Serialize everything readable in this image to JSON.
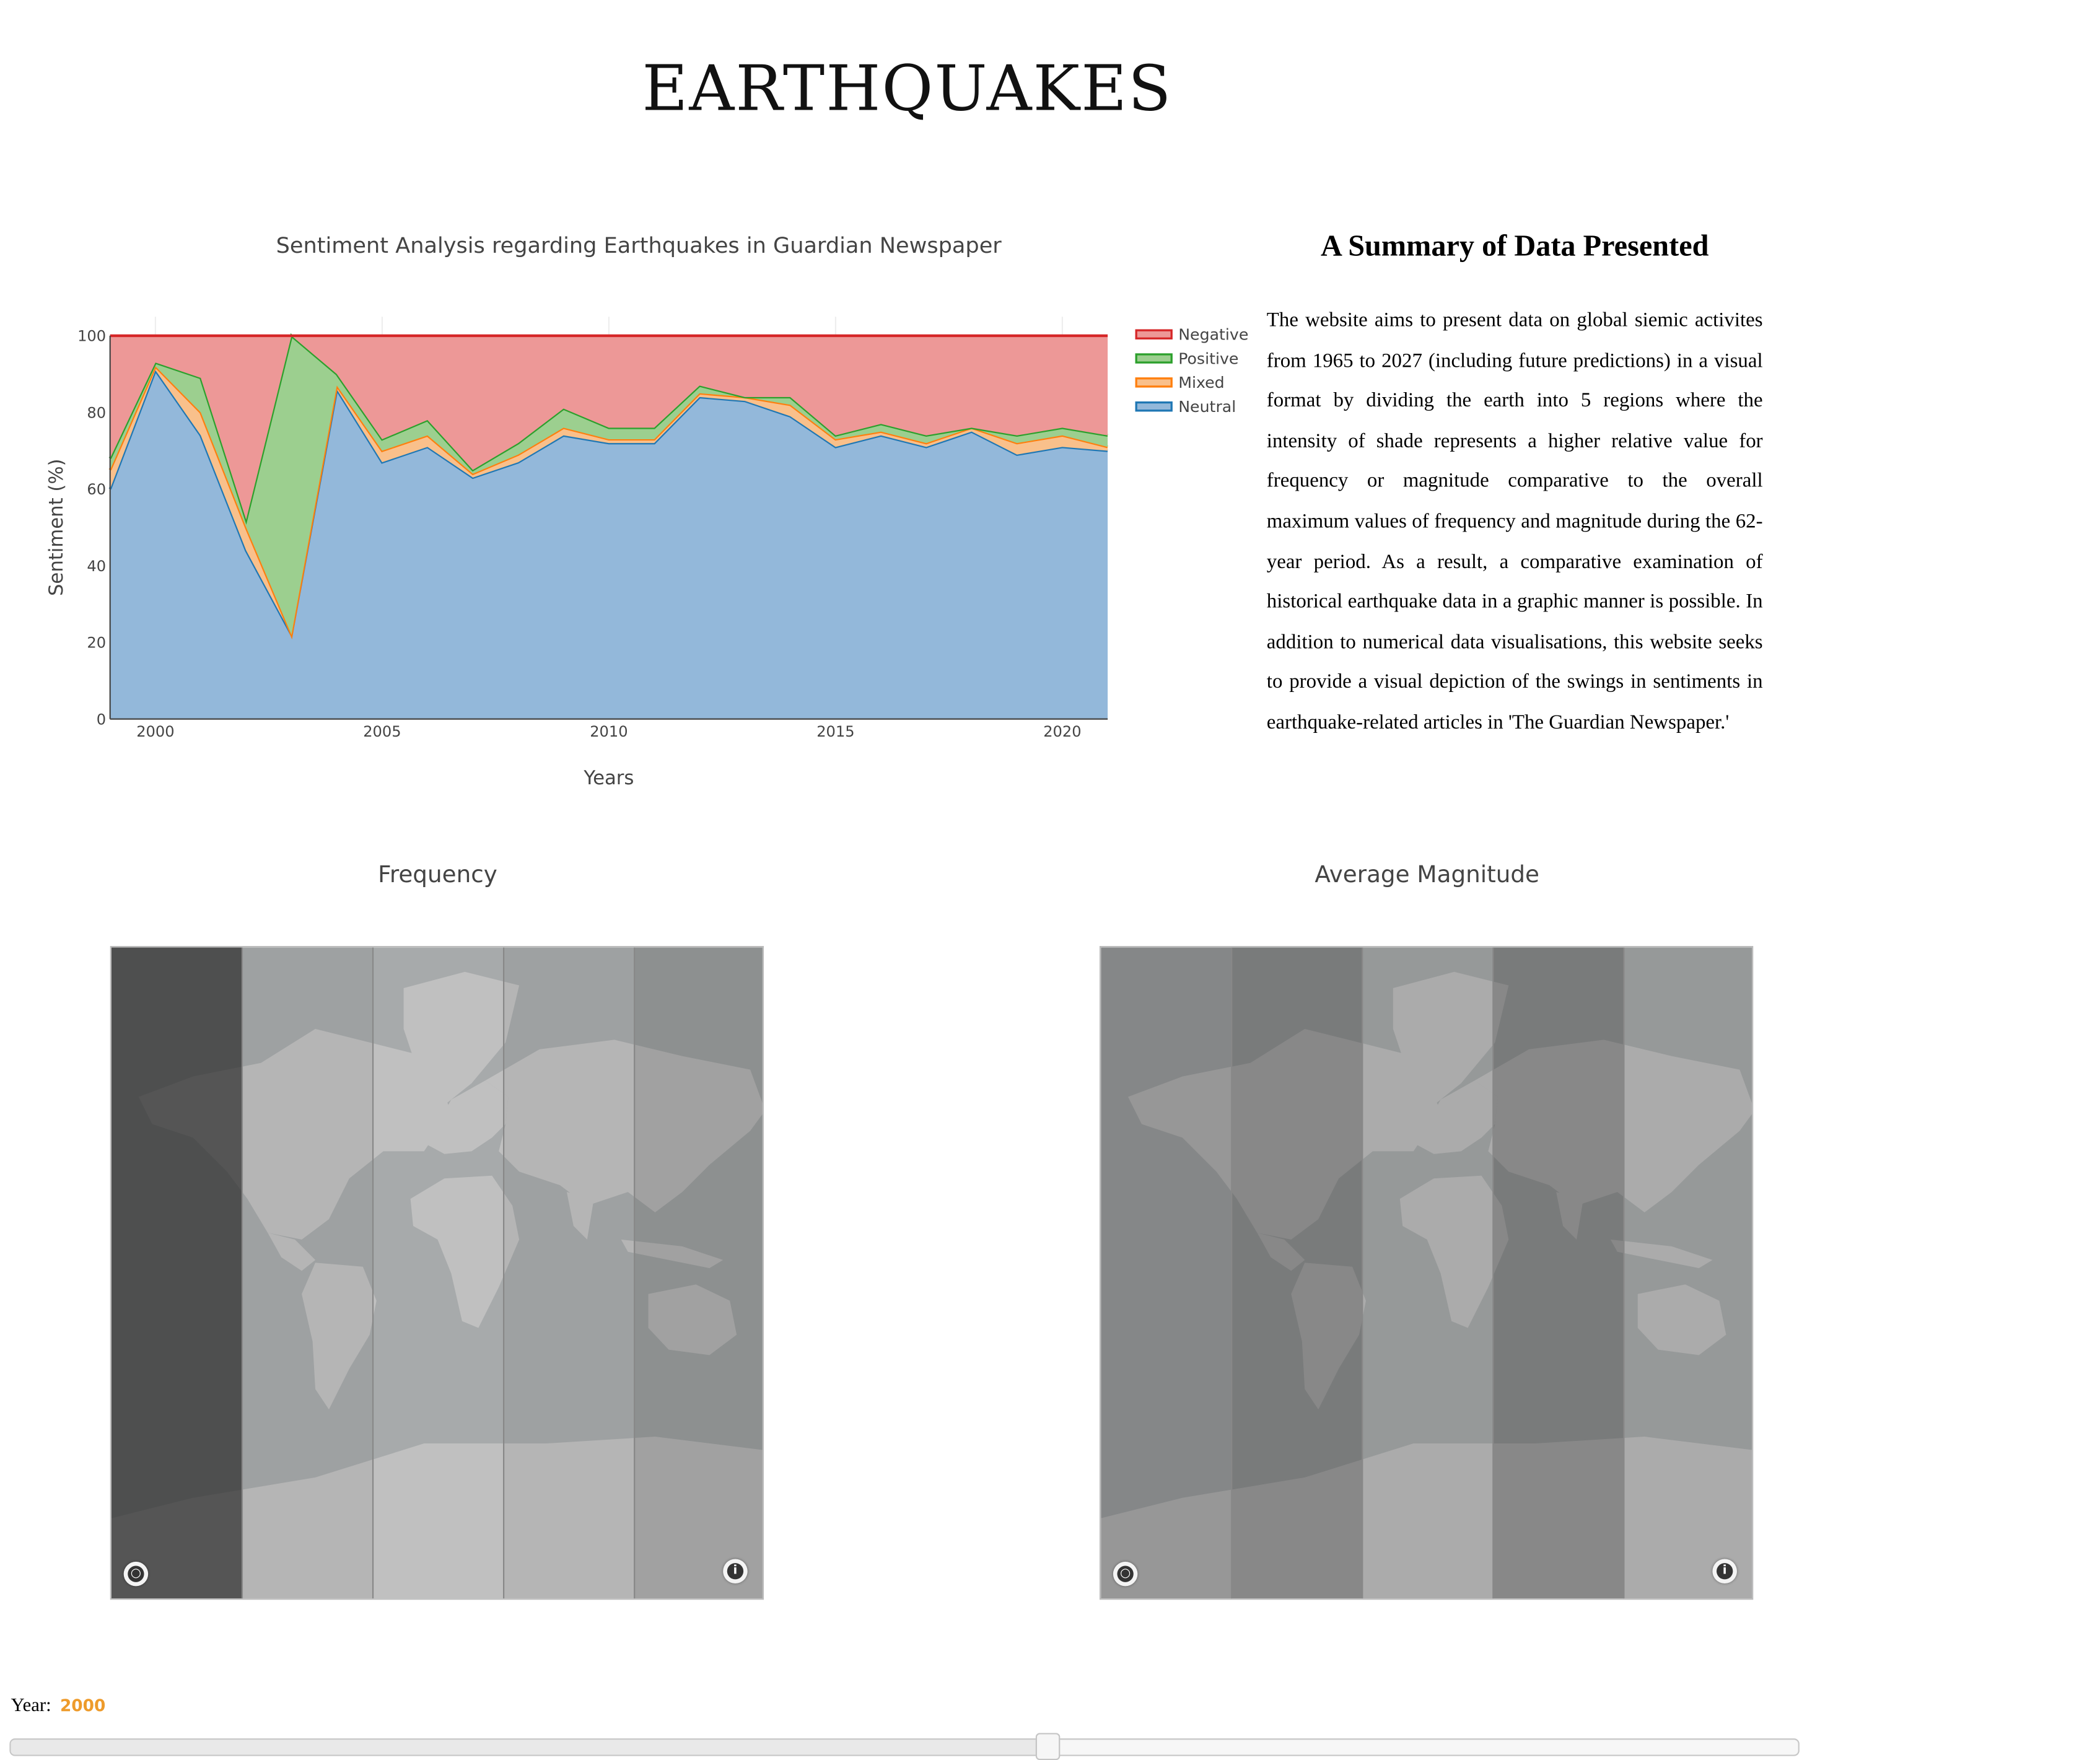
{
  "page": {
    "title": "EARTHQUAKES"
  },
  "summary": {
    "heading": "A Summary of Data Presented",
    "text": "The website aims to present data on global siemic activites from 1965 to 2027 (including future predictions) in a visual format by dividing the earth into 5 regions where the intensity of shade represents a higher relative value for frequency or magnitude comparative to the overall maximum values of frequency and magnitude during the 62-year period. As a result, a comparative examination of historical earthquake data in a graphic manner is possible. In addition to numerical data visualisations, this website seeks to provide a visual depiction of the swings in sentiments in earthquake-related articles in 'The Guardian Newspaper.'"
  },
  "chart_data": [
    {
      "type": "area",
      "stacked": true,
      "title": "Sentiment Analysis regarding Earthquakes in Guardian Newspaper",
      "xlabel": "Years",
      "ylabel": "Sentiment (%)",
      "xlim": [
        1999,
        2021
      ],
      "ylim": [
        0,
        100
      ],
      "x_ticks": [
        2000,
        2005,
        2010,
        2015,
        2020
      ],
      "y_ticks": [
        0,
        20,
        40,
        60,
        80,
        100
      ],
      "grid": true,
      "legend_position": "top-right",
      "x": [
        1999,
        2000,
        2001,
        2002,
        2003,
        2004,
        2005,
        2006,
        2007,
        2008,
        2009,
        2010,
        2011,
        2012,
        2013,
        2014,
        2015,
        2016,
        2017,
        2018,
        2019,
        2020,
        2021
      ],
      "series": [
        {
          "name": "Neutral",
          "color": "#1f77b4",
          "fill": "#93b8da",
          "values": [
            60,
            91,
            74,
            44,
            22,
            86,
            67,
            71,
            63,
            67,
            74,
            72,
            72,
            84,
            83,
            79,
            71,
            74,
            71,
            75,
            69,
            71,
            70
          ]
        },
        {
          "name": "Mixed",
          "color": "#ff7f0e",
          "fill": "#f9c08b",
          "values": [
            5,
            1,
            6,
            6,
            0,
            1,
            3,
            3,
            1,
            2,
            2,
            1,
            1,
            1,
            1,
            3,
            2,
            1,
            1,
            1,
            3,
            3,
            1
          ]
        },
        {
          "name": "Positive",
          "color": "#2ca02c",
          "fill": "#9ccf8f",
          "values": [
            3,
            1,
            9,
            2,
            78,
            3,
            3,
            4,
            1,
            3,
            5,
            3,
            3,
            2,
            0,
            2,
            1,
            2,
            2,
            0,
            2,
            2,
            3
          ]
        },
        {
          "name": "Negative",
          "color": "#d62728",
          "fill": "#ed9897",
          "values": [
            32,
            7,
            11,
            48,
            0,
            10,
            27,
            22,
            35,
            28,
            19,
            24,
            24,
            13,
            16,
            16,
            26,
            23,
            26,
            24,
            26,
            24,
            26
          ]
        }
      ]
    },
    {
      "type": "choropleth",
      "title": "Frequency",
      "year": "2000",
      "regions": 5,
      "intensity": [
        0.95,
        0.32,
        0.25,
        0.32,
        0.45
      ]
    },
    {
      "type": "choropleth",
      "title": "Average Magnitude",
      "year": "2000",
      "regions": 5,
      "intensity": [
        0.52,
        0.62,
        0.38,
        0.62,
        0.38
      ]
    }
  ],
  "slider": {
    "label": "Year:",
    "value": "2000",
    "min": 1965,
    "max": 2027,
    "position": 0.58
  },
  "map_buttons": {
    "info": "i"
  }
}
